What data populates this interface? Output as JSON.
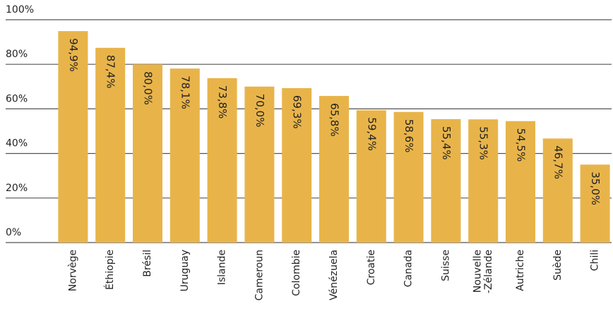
{
  "chart_data": {
    "type": "bar",
    "categories": [
      "Norvège",
      "Éthiopie",
      "Brésil",
      "Uruguay",
      "Islande",
      "Cameroun",
      "Colombie",
      "Vénézuela",
      "Croatie",
      "Canada",
      "Suisse",
      "Nouvelle\n-Zélande",
      "Autriche",
      "Suède",
      "Chili"
    ],
    "values": [
      94.9,
      87.4,
      80.0,
      78.1,
      73.8,
      70.0,
      69.3,
      65.8,
      59.4,
      58.6,
      55.4,
      55.3,
      54.5,
      46.7,
      35.0
    ],
    "value_labels": [
      "94,9%",
      "87,4%",
      "80,0%",
      "78,1%",
      "73,8%",
      "70,0%",
      "69,3%",
      "65,8%",
      "59,4%",
      "58,6%",
      "55,4%",
      "55,3%",
      "54,5%",
      "46,7%",
      "35,0%"
    ],
    "color": "#e8b44a",
    "ylim": [
      0,
      100
    ],
    "yticks": [
      {
        "value": 0,
        "label": "0%"
      },
      {
        "value": 20,
        "label": "20%"
      },
      {
        "value": 40,
        "label": "40%"
      },
      {
        "value": 60,
        "label": "60%"
      },
      {
        "value": 80,
        "label": "80%"
      },
      {
        "value": 100,
        "label": "100%"
      }
    ],
    "grid": true
  }
}
